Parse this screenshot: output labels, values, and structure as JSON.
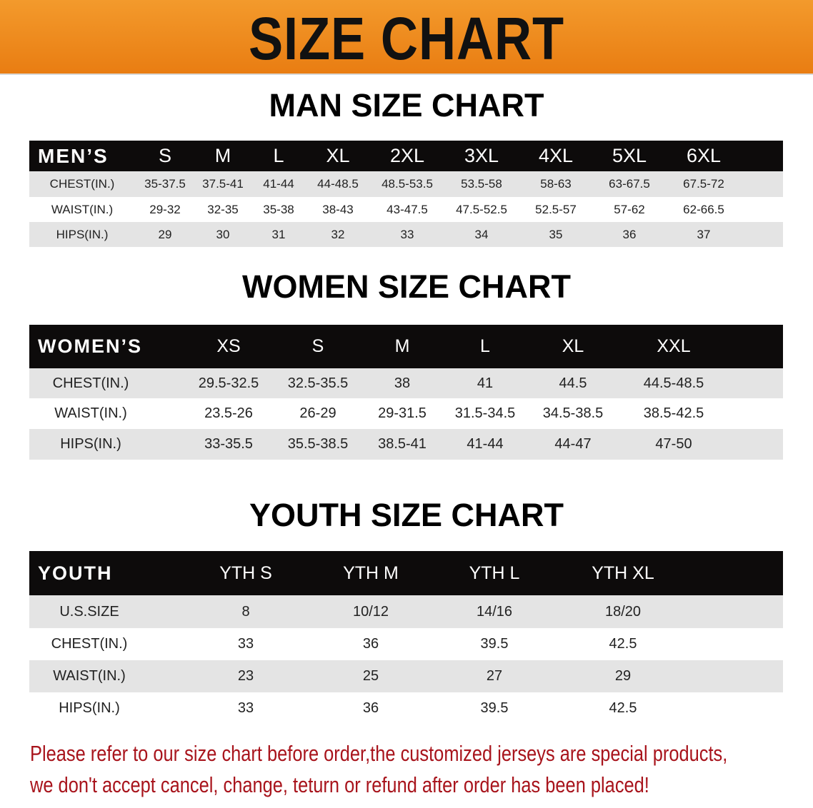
{
  "banner": {
    "title": "SIZE CHART",
    "color": "#ee8a1f"
  },
  "men": {
    "title": "MAN SIZE CHART",
    "header_label": "MEN’S",
    "sizes": [
      "S",
      "M",
      "L",
      "XL",
      "2XL",
      "3XL",
      "4XL",
      "5XL",
      "6XL"
    ],
    "rows": [
      {
        "label": "CHEST(IN.)",
        "values": [
          "35-37.5",
          "37.5-41",
          "41-44",
          "44-48.5",
          "48.5-53.5",
          "53.5-58",
          "58-63",
          "63-67.5",
          "67.5-72"
        ]
      },
      {
        "label": "WAIST(IN.)",
        "values": [
          "29-32",
          "32-35",
          "35-38",
          "38-43",
          "43-47.5",
          "47.5-52.5",
          "52.5-57",
          "57-62",
          "62-66.5"
        ]
      },
      {
        "label": "HIPS(IN.)",
        "values": [
          "29",
          "30",
          "31",
          "32",
          "33",
          "34",
          "35",
          "36",
          "37"
        ]
      }
    ]
  },
  "women": {
    "title": "WOMEN SIZE CHART",
    "header_label": "WOMEN’S",
    "sizes": [
      "XS",
      "S",
      "M",
      "L",
      "XL",
      "XXL"
    ],
    "rows": [
      {
        "label": "CHEST(IN.)",
        "values": [
          "29.5-32.5",
          "32.5-35.5",
          "38",
          "41",
          "44.5",
          "44.5-48.5"
        ]
      },
      {
        "label": "WAIST(IN.)",
        "values": [
          "23.5-26",
          "26-29",
          "29-31.5",
          "31.5-34.5",
          "34.5-38.5",
          "38.5-42.5"
        ]
      },
      {
        "label": "HIPS(IN.)",
        "values": [
          "33-35.5",
          "35.5-38.5",
          "38.5-41",
          "41-44",
          "44-47",
          "47-50"
        ]
      }
    ]
  },
  "youth": {
    "title": "YOUTH SIZE CHART",
    "header_label": "YOUTH",
    "sizes": [
      "YTH S",
      "YTH M",
      "YTH L",
      "YTH XL"
    ],
    "rows": [
      {
        "label": "U.S.SIZE",
        "values": [
          "8",
          "10/12",
          "14/16",
          "18/20"
        ]
      },
      {
        "label": "CHEST(IN.)",
        "values": [
          "33",
          "36",
          "39.5",
          "42.5"
        ]
      },
      {
        "label": "WAIST(IN.)",
        "values": [
          "23",
          "25",
          "27",
          "29"
        ]
      },
      {
        "label": "HIPS(IN.)",
        "values": [
          "33",
          "36",
          "39.5",
          "42.5"
        ]
      }
    ]
  },
  "notice": {
    "line1": "Please refer to our size chart before order,the customized jerseys are special products,",
    "line2": "we don't accept cancel, change, teturn or refund after order has been placed!",
    "color": "#a8141c"
  }
}
